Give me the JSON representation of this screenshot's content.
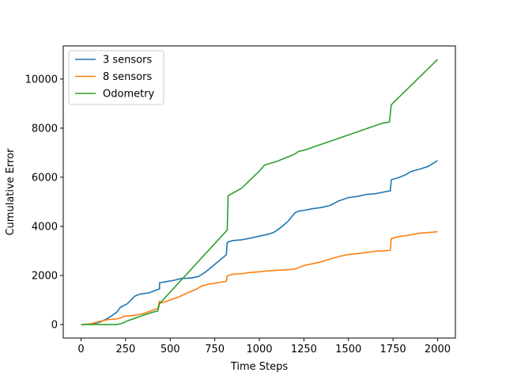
{
  "chart_data": {
    "type": "line",
    "xlabel": "Time Steps",
    "ylabel": "Cumulative Error",
    "xlim": [
      -100,
      2100
    ],
    "ylim": [
      -550,
      11350
    ],
    "xticks": [
      0,
      250,
      500,
      750,
      1000,
      1250,
      1500,
      1750,
      2000
    ],
    "yticks": [
      0,
      2000,
      4000,
      6000,
      8000,
      10000
    ],
    "grid": false,
    "legend_position": "top-left",
    "series": [
      {
        "name": "3 sensors",
        "color": "#1f77b4",
        "points": [
          [
            0,
            0
          ],
          [
            50,
            20
          ],
          [
            100,
            80
          ],
          [
            150,
            250
          ],
          [
            200,
            500
          ],
          [
            220,
            700
          ],
          [
            260,
            850
          ],
          [
            300,
            1150
          ],
          [
            330,
            1240
          ],
          [
            380,
            1290
          ],
          [
            420,
            1400
          ],
          [
            440,
            1450
          ],
          [
            440,
            1700
          ],
          [
            480,
            1750
          ],
          [
            520,
            1800
          ],
          [
            560,
            1870
          ],
          [
            620,
            1900
          ],
          [
            660,
            1960
          ],
          [
            700,
            2150
          ],
          [
            750,
            2450
          ],
          [
            800,
            2750
          ],
          [
            815,
            2850
          ],
          [
            820,
            3350
          ],
          [
            850,
            3420
          ],
          [
            900,
            3450
          ],
          [
            950,
            3520
          ],
          [
            1000,
            3600
          ],
          [
            1050,
            3680
          ],
          [
            1080,
            3750
          ],
          [
            1120,
            3950
          ],
          [
            1160,
            4200
          ],
          [
            1200,
            4550
          ],
          [
            1220,
            4620
          ],
          [
            1250,
            4650
          ],
          [
            1300,
            4720
          ],
          [
            1350,
            4770
          ],
          [
            1400,
            4860
          ],
          [
            1450,
            5050
          ],
          [
            1500,
            5170
          ],
          [
            1550,
            5220
          ],
          [
            1600,
            5300
          ],
          [
            1650,
            5330
          ],
          [
            1700,
            5400
          ],
          [
            1735,
            5450
          ],
          [
            1740,
            5900
          ],
          [
            1780,
            5980
          ],
          [
            1820,
            6100
          ],
          [
            1850,
            6230
          ],
          [
            1900,
            6330
          ],
          [
            1950,
            6450
          ],
          [
            2000,
            6680
          ]
        ]
      },
      {
        "name": "8 sensors",
        "color": "#ff7f0e",
        "points": [
          [
            0,
            0
          ],
          [
            50,
            20
          ],
          [
            100,
            120
          ],
          [
            150,
            200
          ],
          [
            200,
            230
          ],
          [
            220,
            260
          ],
          [
            240,
            340
          ],
          [
            300,
            370
          ],
          [
            350,
            450
          ],
          [
            400,
            580
          ],
          [
            430,
            650
          ],
          [
            440,
            950
          ],
          [
            450,
            880
          ],
          [
            500,
            1000
          ],
          [
            550,
            1130
          ],
          [
            600,
            1300
          ],
          [
            650,
            1450
          ],
          [
            680,
            1580
          ],
          [
            720,
            1650
          ],
          [
            780,
            1720
          ],
          [
            815,
            1760
          ],
          [
            820,
            1980
          ],
          [
            850,
            2050
          ],
          [
            900,
            2070
          ],
          [
            950,
            2120
          ],
          [
            1000,
            2150
          ],
          [
            1050,
            2190
          ],
          [
            1100,
            2210
          ],
          [
            1150,
            2230
          ],
          [
            1200,
            2260
          ],
          [
            1250,
            2400
          ],
          [
            1300,
            2480
          ],
          [
            1350,
            2560
          ],
          [
            1400,
            2680
          ],
          [
            1450,
            2780
          ],
          [
            1500,
            2850
          ],
          [
            1550,
            2890
          ],
          [
            1600,
            2930
          ],
          [
            1650,
            2990
          ],
          [
            1700,
            3000
          ],
          [
            1735,
            3030
          ],
          [
            1740,
            3500
          ],
          [
            1780,
            3580
          ],
          [
            1850,
            3650
          ],
          [
            1900,
            3720
          ],
          [
            1950,
            3750
          ],
          [
            2000,
            3780
          ]
        ]
      },
      {
        "name": "Odometry",
        "color": "#2ca02c",
        "points": [
          [
            0,
            0
          ],
          [
            200,
            0
          ],
          [
            230,
            50
          ],
          [
            260,
            150
          ],
          [
            300,
            250
          ],
          [
            350,
            380
          ],
          [
            400,
            500
          ],
          [
            430,
            550
          ],
          [
            440,
            850
          ],
          [
            820,
            3850
          ],
          [
            825,
            5250
          ],
          [
            900,
            5550
          ],
          [
            1000,
            6250
          ],
          [
            1030,
            6500
          ],
          [
            1100,
            6650
          ],
          [
            1200,
            6950
          ],
          [
            1220,
            7050
          ],
          [
            1260,
            7120
          ],
          [
            1690,
            8200
          ],
          [
            1730,
            8250
          ],
          [
            1740,
            8950
          ],
          [
            2000,
            10800
          ]
        ]
      }
    ]
  }
}
